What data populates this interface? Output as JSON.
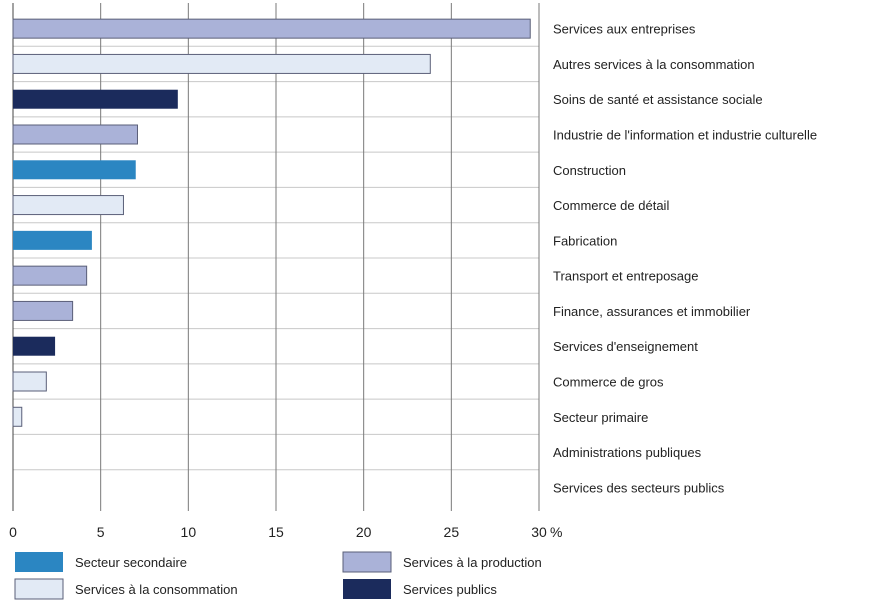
{
  "chart_data": {
    "type": "bar",
    "orientation": "horizontal",
    "title": "",
    "xlabel": "",
    "ylabel": "",
    "x_unit": "%",
    "xlim": [
      0,
      30
    ],
    "x_ticks": [
      0,
      5,
      10,
      15,
      20,
      25,
      30
    ],
    "grid": true,
    "legend_position": "bottom",
    "categories": [
      "Services aux entreprises",
      "Autres services à la consommation",
      "Soins de santé et assistance sociale",
      "Industrie de l'information et industrie culturelle",
      "Construction",
      "Commerce de détail",
      "Fabrication",
      "Transport et entreposage",
      "Finance, assurances  et immobilier",
      "Services d'enseignement",
      "Commerce de gros",
      "Secteur primaire",
      "Administrations publiques",
      "Services des secteurs publics"
    ],
    "values": [
      29.5,
      23.8,
      9.4,
      7.1,
      7.0,
      6.3,
      4.5,
      4.2,
      3.4,
      2.4,
      1.9,
      0.5,
      0,
      0
    ],
    "groups": [
      "Services à la production",
      "Services à la consommation",
      "Services publics",
      "Services à la production",
      "Secteur secondaire",
      "Services à la consommation",
      "Secteur secondaire",
      "Services à la production",
      "Services à la production",
      "Services publics",
      "Services à la consommation",
      "Services à la consommation",
      "Services publics",
      "Services publics"
    ],
    "legend": [
      {
        "name": "Secteur secondaire",
        "color": "#2b86c2"
      },
      {
        "name": "Services à la production",
        "color": "#aab2d8"
      },
      {
        "name": "Services à la consommation",
        "color": "#e2eaf5"
      },
      {
        "name": "Services publics",
        "color": "#1b2b5c"
      }
    ]
  }
}
